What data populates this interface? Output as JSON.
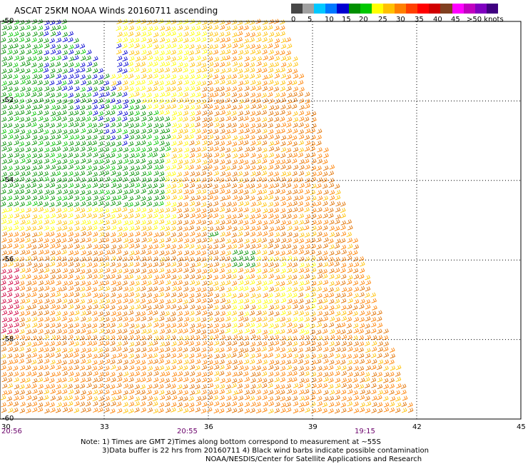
{
  "title": "ASCAT 25KM NOAA Winds 20160711 ascending",
  "legend": {
    "labels": [
      "0",
      "5",
      "10",
      "15",
      "20",
      "25",
      "30",
      "35",
      "40",
      "45",
      ">50 knots"
    ],
    "colors": [
      "#474747",
      "#a0a0a0",
      "#00c8ff",
      "#0078ff",
      "#0000d0",
      "#009000",
      "#00c800",
      "#ffff00",
      "#ffc000",
      "#ff8000",
      "#ff4000",
      "#ff0000",
      "#d00000",
      "#804020",
      "#ff00ff",
      "#c000c0",
      "#8000c0",
      "#400080"
    ]
  },
  "map": {
    "lon_range": [
      30,
      45
    ],
    "lat_range": [
      -60,
      -50
    ],
    "lon_ticks": [
      "30",
      "33",
      "36",
      "39",
      "42",
      "45"
    ],
    "lat_ticks": [
      "-50",
      "-52",
      "-54",
      "-56",
      "-58",
      "-60"
    ],
    "times": [
      "20:56",
      "20:55",
      "19:15"
    ]
  },
  "notes": [
    "Note: 1) Times are GMT 2)Times along bottom correspond to measurement at ~55S",
    "3)Data buffer is 22 hrs from 20160711 4) Black wind barbs indicate possible contamination",
    "NOAA/NESDIS/Center for Satellite Applications and Research"
  ]
}
